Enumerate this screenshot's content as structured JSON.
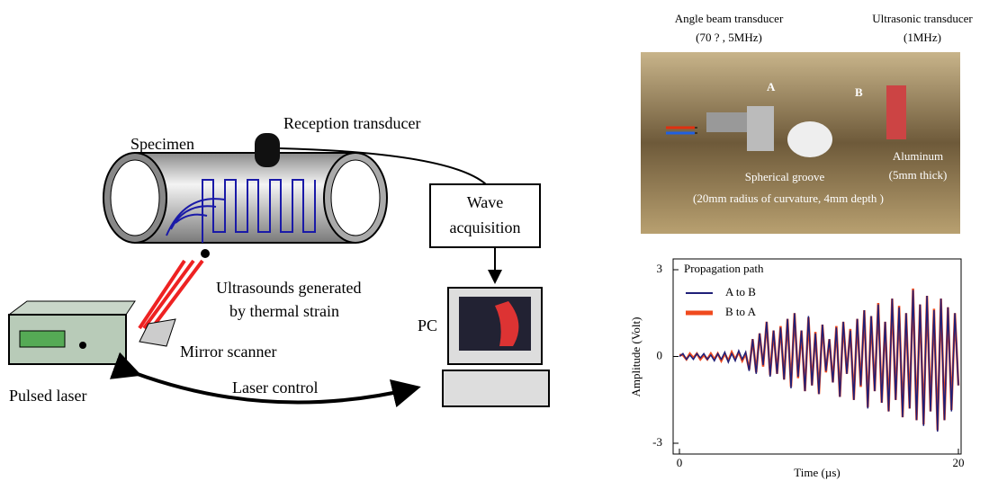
{
  "diagram": {
    "specimen": "Specimen",
    "reception": "Reception transducer",
    "wave_acquisition": [
      "Wave",
      "acquisition"
    ],
    "ultrasounds": [
      "Ultrasounds generated",
      "by thermal strain"
    ],
    "pc": "PC",
    "mirror": "Mirror scanner",
    "laser": "Pulsed laser",
    "control": "Laser control"
  },
  "photo": {
    "angle_beam": [
      "Angle beam transducer",
      "(70 ? , 5MHz)"
    ],
    "ultrasonic": [
      "Ultrasonic transducer",
      "(1MHz)"
    ],
    "a": "A",
    "b": "B",
    "aluminum": [
      "Aluminum",
      "(5mm thick)"
    ],
    "groove": "Spherical  groove",
    "groove_size": "(20mm radius of curvature, 4mm depth )"
  },
  "chart_data": {
    "type": "line",
    "xlabel": "Time (µs)",
    "ylabel": "Amplitude (Volt)",
    "legend_title": "Propagation path",
    "x": [
      0,
      0.25,
      0.5,
      0.75,
      1,
      1.25,
      1.5,
      1.75,
      2,
      2.25,
      2.5,
      2.75,
      3,
      3.25,
      3.5,
      3.75,
      4,
      4.25,
      4.5,
      4.75,
      5,
      5.25,
      5.5,
      5.75,
      6,
      6.25,
      6.5,
      6.75,
      7,
      7.25,
      7.5,
      7.75,
      8,
      8.25,
      8.5,
      8.75,
      9,
      9.25,
      9.5,
      9.75,
      10,
      10.25,
      10.5,
      10.75,
      11,
      11.25,
      11.5,
      11.75,
      12,
      12.25,
      12.5,
      12.75,
      13,
      13.25,
      13.5,
      13.75,
      14,
      14.25,
      14.5,
      14.75,
      15,
      15.25,
      15.5,
      15.75,
      16,
      16.25,
      16.5,
      16.75,
      17,
      17.25,
      17.5,
      17.75,
      18,
      18.25,
      18.5,
      18.75,
      19,
      19.25,
      19.5,
      19.75,
      20
    ],
    "series": [
      {
        "name": "A to B",
        "color": "#1f1f78",
        "values": [
          0,
          0.1,
          -0.1,
          0.05,
          -0.1,
          0.1,
          -0.05,
          0.1,
          -0.1,
          0.05,
          -0.15,
          0.1,
          -0.1,
          0.15,
          -0.2,
          0.1,
          -0.15,
          0.2,
          -0.1,
          0.15,
          -0.5,
          0.6,
          -0.6,
          0.8,
          -0.3,
          1.2,
          -0.7,
          0.9,
          -0.6,
          1.0,
          -0.8,
          1.3,
          -1.1,
          1.5,
          -0.7,
          0.9,
          -1.2,
          1.4,
          -1.0,
          0.8,
          -1.3,
          1.1,
          -0.5,
          0.6,
          -0.9,
          1.0,
          -1.4,
          1.2,
          -0.6,
          0.9,
          -1.5,
          1.3,
          -1.0,
          1.6,
          -1.8,
          1.4,
          -1.2,
          1.8,
          -1.6,
          1.2,
          -1.9,
          2.0,
          -1.5,
          1.7,
          -2.1,
          1.5,
          -1.8,
          2.3,
          -2.2,
          1.8,
          -2.4,
          2.1,
          -1.9,
          1.6,
          -2.6,
          2.0,
          -2.2,
          1.7,
          -1.9,
          1.5,
          -1.0
        ]
      },
      {
        "name": "B to A",
        "color": "#f04a1e",
        "values": [
          0.05,
          0.05,
          -0.1,
          0.1,
          -0.05,
          0.1,
          -0.1,
          0.05,
          -0.1,
          0.1,
          -0.1,
          0.1,
          -0.15,
          0.1,
          -0.15,
          0.15,
          -0.1,
          0.15,
          -0.15,
          0.1,
          -0.45,
          0.6,
          -0.55,
          0.8,
          -0.35,
          1.2,
          -0.65,
          0.9,
          -0.6,
          1.05,
          -0.8,
          1.3,
          -1.05,
          1.5,
          -0.75,
          0.9,
          -1.2,
          1.35,
          -1.0,
          0.85,
          -1.3,
          1.1,
          -0.55,
          0.6,
          -0.9,
          1.05,
          -1.4,
          1.2,
          -0.6,
          0.95,
          -1.5,
          1.3,
          -1.05,
          1.6,
          -1.75,
          1.4,
          -1.2,
          1.85,
          -1.6,
          1.2,
          -1.9,
          2.0,
          -1.5,
          1.75,
          -2.1,
          1.5,
          -1.8,
          2.35,
          -2.2,
          1.8,
          -2.35,
          2.1,
          -1.9,
          1.65,
          -2.55,
          2.0,
          -2.2,
          1.7,
          -1.85,
          1.5,
          -1.0
        ]
      }
    ],
    "xlim": [
      0,
      20
    ],
    "xticks": [
      0,
      20
    ],
    "ylim": [
      -3,
      3
    ],
    "yticks": [
      -3,
      0,
      3
    ]
  }
}
